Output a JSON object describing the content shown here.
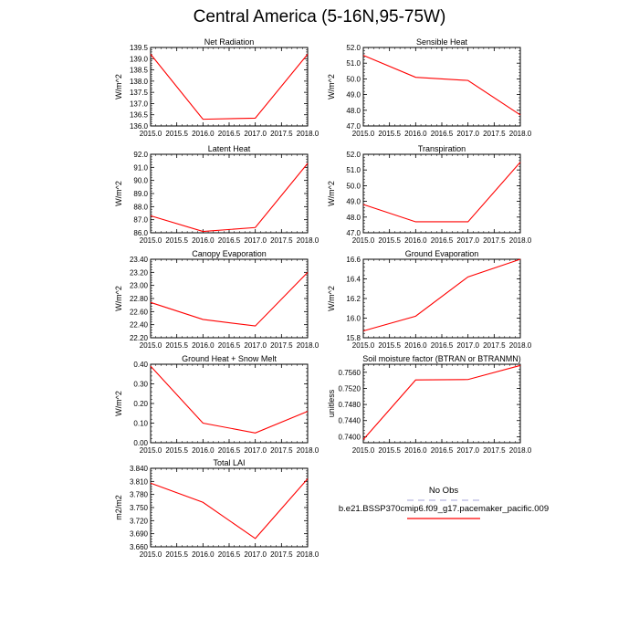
{
  "title": "Central America (5-16N,95-75W)",
  "colors": {
    "model": "#ff0000",
    "obs": "#b8b8e0",
    "axis": "#000000"
  },
  "legend": {
    "obs_label": "No Obs",
    "model_label": "b.e21.BSSP370cmip6.f09_g17.pacemaker_pacific.009"
  },
  "chart_data": [
    {
      "type": "line",
      "title": "Net Radiation",
      "ylabel": "W/m^2",
      "x": [
        2015,
        2016,
        2017,
        2018
      ],
      "values": [
        139.2,
        136.3,
        136.35,
        139.2
      ],
      "xlim": [
        2015,
        2018
      ],
      "xticks": [
        "2015.0",
        "2015.5",
        "2016.0",
        "2016.5",
        "2017.0",
        "2017.5",
        "2018.0"
      ],
      "ylim": [
        136.0,
        139.5
      ],
      "yticks": [
        "136.0",
        "136.5",
        "137.0",
        "137.5",
        "138.0",
        "138.5",
        "139.0",
        "139.5"
      ]
    },
    {
      "type": "line",
      "title": "Sensible Heat",
      "ylabel": "W/m^2",
      "x": [
        2015,
        2016,
        2017,
        2018
      ],
      "values": [
        51.5,
        50.1,
        49.9,
        47.7
      ],
      "xlim": [
        2015,
        2018
      ],
      "xticks": [
        "2015.0",
        "2015.5",
        "2016.0",
        "2016.5",
        "2017.0",
        "2017.5",
        "2018.0"
      ],
      "ylim": [
        47.0,
        52.0
      ],
      "yticks": [
        "47.0",
        "48.0",
        "49.0",
        "50.0",
        "51.0",
        "52.0"
      ]
    },
    {
      "type": "line",
      "title": "Latent Heat",
      "ylabel": "W/m^2",
      "x": [
        2015,
        2016,
        2017,
        2018
      ],
      "values": [
        87.3,
        86.1,
        86.4,
        91.3
      ],
      "xlim": [
        2015,
        2018
      ],
      "xticks": [
        "2015.0",
        "2015.5",
        "2016.0",
        "2016.5",
        "2017.0",
        "2017.5",
        "2018.0"
      ],
      "ylim": [
        86.0,
        92.0
      ],
      "yticks": [
        "86.0",
        "87.0",
        "88.0",
        "89.0",
        "90.0",
        "91.0",
        "92.0"
      ]
    },
    {
      "type": "line",
      "title": "Transpiration",
      "ylabel": "W/m^2",
      "x": [
        2015,
        2016,
        2017,
        2018
      ],
      "values": [
        48.8,
        47.7,
        47.7,
        51.5
      ],
      "xlim": [
        2015,
        2018
      ],
      "xticks": [
        "2015.0",
        "2015.5",
        "2016.0",
        "2016.5",
        "2017.0",
        "2017.5",
        "2018.0"
      ],
      "ylim": [
        47.0,
        52.0
      ],
      "yticks": [
        "47.0",
        "48.0",
        "49.0",
        "50.0",
        "51.0",
        "52.0"
      ]
    },
    {
      "type": "line",
      "title": "Canopy Evaporation",
      "ylabel": "W/m^2",
      "x": [
        2015,
        2016,
        2017,
        2018
      ],
      "values": [
        22.74,
        22.48,
        22.38,
        23.2
      ],
      "xlim": [
        2015,
        2018
      ],
      "xticks": [
        "2015.0",
        "2015.5",
        "2016.0",
        "2016.5",
        "2017.0",
        "2017.5",
        "2018.0"
      ],
      "ylim": [
        22.2,
        23.4
      ],
      "yticks": [
        "22.20",
        "22.40",
        "22.60",
        "22.80",
        "23.00",
        "23.20",
        "23.40"
      ]
    },
    {
      "type": "line",
      "title": "Ground Evaporation",
      "ylabel": "W/m^2",
      "x": [
        2015,
        2016,
        2017,
        2018
      ],
      "values": [
        15.87,
        16.02,
        16.42,
        16.6
      ],
      "xlim": [
        2015,
        2018
      ],
      "xticks": [
        "2015.0",
        "2015.5",
        "2016.0",
        "2016.5",
        "2017.0",
        "2017.5",
        "2018.0"
      ],
      "ylim": [
        15.8,
        16.6
      ],
      "yticks": [
        "15.8",
        "16.0",
        "16.2",
        "16.4",
        "16.6"
      ]
    },
    {
      "type": "line",
      "title": "Ground Heat + Snow Melt",
      "ylabel": "W/m^2",
      "x": [
        2015,
        2016,
        2017,
        2018
      ],
      "values": [
        0.39,
        0.1,
        0.05,
        0.16
      ],
      "xlim": [
        2015,
        2018
      ],
      "xticks": [
        "2015.0",
        "2015.5",
        "2016.0",
        "2016.5",
        "2017.0",
        "2017.5",
        "2018.0"
      ],
      "ylim": [
        0.0,
        0.4
      ],
      "yticks": [
        "0.00",
        "0.10",
        "0.20",
        "0.30",
        "0.40"
      ]
    },
    {
      "type": "line",
      "title": "Soil moisture factor (BTRAN or BTRANMN)",
      "ylabel": "unitless",
      "x": [
        2015,
        2016,
        2017,
        2018
      ],
      "values": [
        0.7393,
        0.7541,
        0.7542,
        0.7577
      ],
      "xlim": [
        2015,
        2018
      ],
      "xticks": [
        "2015.0",
        "2015.5",
        "2016.0",
        "2016.5",
        "2017.0",
        "2017.5",
        "2018.0"
      ],
      "ylim": [
        0.7385,
        0.758
      ],
      "yticks": [
        "0.7400",
        "0.7440",
        "0.7480",
        "0.7520",
        "0.7560"
      ]
    },
    {
      "type": "line",
      "title": "Total LAI",
      "ylabel": "m2/m2",
      "x": [
        2015,
        2016,
        2017,
        2018
      ],
      "values": [
        3.806,
        3.762,
        3.679,
        3.816
      ],
      "xlim": [
        2015,
        2018
      ],
      "xticks": [
        "2015.0",
        "2015.5",
        "2016.0",
        "2016.5",
        "2017.0",
        "2017.5",
        "2018.0"
      ],
      "ylim": [
        3.66,
        3.84
      ],
      "yticks": [
        "3.660",
        "3.690",
        "3.720",
        "3.750",
        "3.780",
        "3.810",
        "3.840"
      ]
    }
  ]
}
